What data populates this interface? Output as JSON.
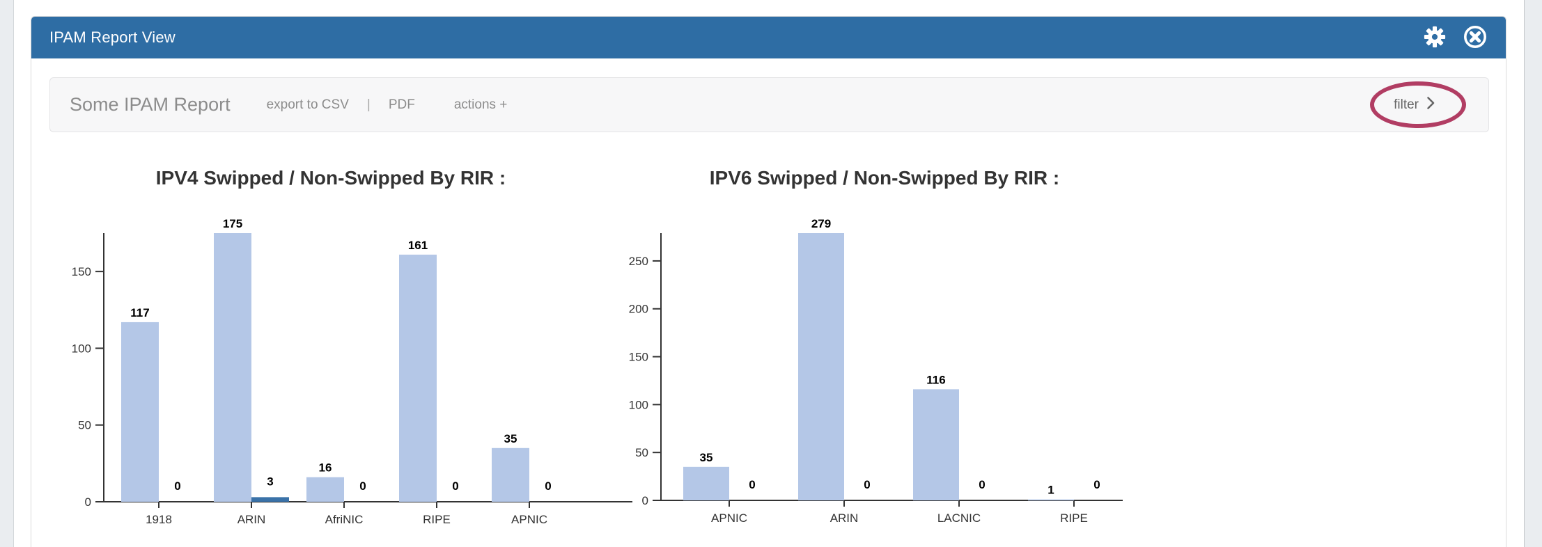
{
  "header": {
    "title": "IPAM Report View",
    "icons": [
      {
        "name": "gear-icon"
      },
      {
        "name": "close-icon"
      }
    ]
  },
  "toolbar": {
    "report_title": "Some IPAM Report",
    "export_csv_label": "export to CSV",
    "separator": "|",
    "pdf_label": "PDF",
    "actions_label": "actions +",
    "filter_label": "filter"
  },
  "annotation": {
    "type": "ellipse-highlight",
    "target": "filter-button",
    "color": "#b13d63"
  },
  "colors": {
    "header_bg": "#2e6da4",
    "bar_primary": "#b4c7e7",
    "bar_secondary": "#3a72a8",
    "axis": "#333333",
    "annotation": "#b13d63"
  },
  "chart_data": [
    {
      "type": "bar",
      "title": "IPV4 Swipped / Non-Swipped By RIR :",
      "categories": [
        "1918",
        "ARIN",
        "AfriNIC",
        "RIPE",
        "APNIC"
      ],
      "series": [
        {
          "name": "Swipped",
          "values": [
            117,
            175,
            16,
            161,
            35
          ]
        },
        {
          "name": "Non-Swipped",
          "values": [
            0,
            3,
            0,
            0,
            0
          ]
        }
      ],
      "bar_colors": [
        "#b4c7e7",
        "#3a72a8"
      ],
      "yticks": [
        0,
        50,
        100,
        150
      ],
      "ylim": [
        0,
        175
      ],
      "grid": false,
      "legend": "none",
      "value_labels": true,
      "xlabel": "",
      "ylabel": ""
    },
    {
      "type": "bar",
      "title": "IPV6 Swipped / Non-Swipped By RIR :",
      "categories": [
        "APNIC",
        "ARIN",
        "LACNIC",
        "RIPE"
      ],
      "series": [
        {
          "name": "Swipped",
          "values": [
            35,
            279,
            116,
            1
          ]
        },
        {
          "name": "Non-Swipped",
          "values": [
            0,
            0,
            0,
            0
          ]
        }
      ],
      "bar_colors": [
        "#b4c7e7",
        "#3a72a8"
      ],
      "yticks": [
        0,
        50,
        100,
        150,
        200,
        250
      ],
      "ylim": [
        0,
        279
      ],
      "grid": false,
      "legend": "none",
      "value_labels": true,
      "xlabel": "",
      "ylabel": ""
    }
  ]
}
